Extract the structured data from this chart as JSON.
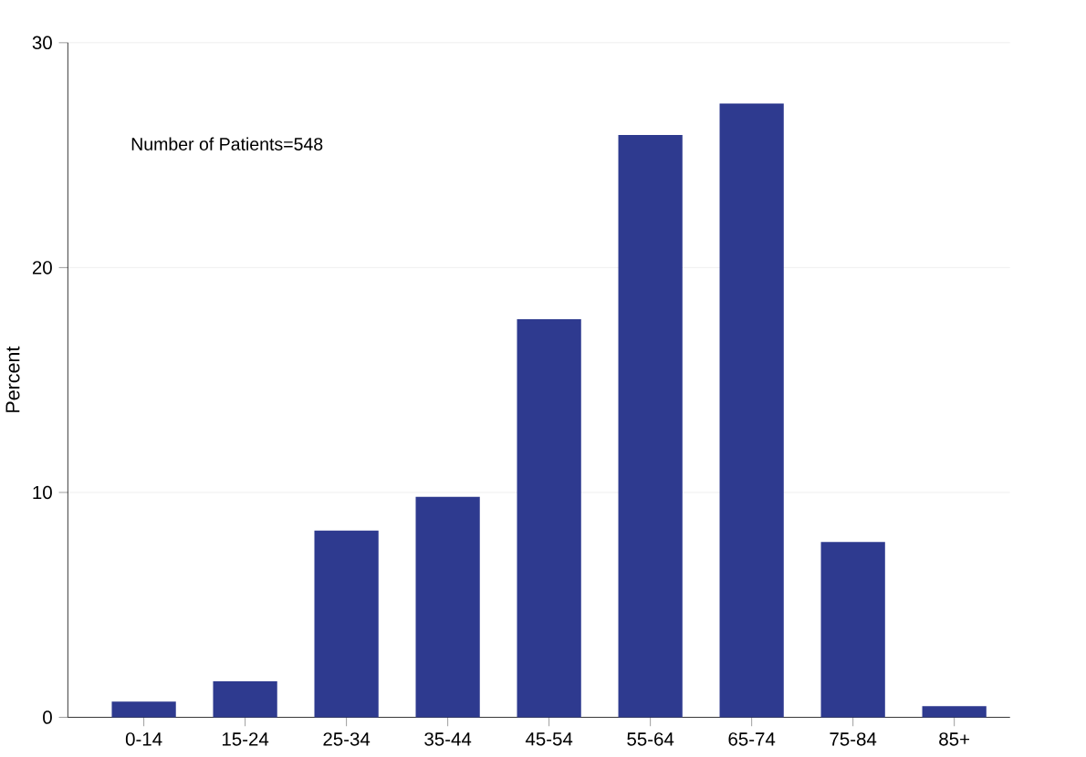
{
  "chart_data": {
    "type": "bar",
    "ylabel": "Percent",
    "categories": [
      "0-14",
      "15-24",
      "25-34",
      "35-44",
      "45-54",
      "55-64",
      "65-74",
      "75-84",
      "85+"
    ],
    "values": [
      0.7,
      1.6,
      8.3,
      9.8,
      17.7,
      25.9,
      27.3,
      7.8,
      0.5
    ],
    "color": "#2e3a8f",
    "ylim": [
      0,
      30
    ],
    "yticks": [
      0,
      10,
      20,
      30
    ],
    "grid": "y",
    "annotations": [
      "Number of Patients=548"
    ]
  }
}
